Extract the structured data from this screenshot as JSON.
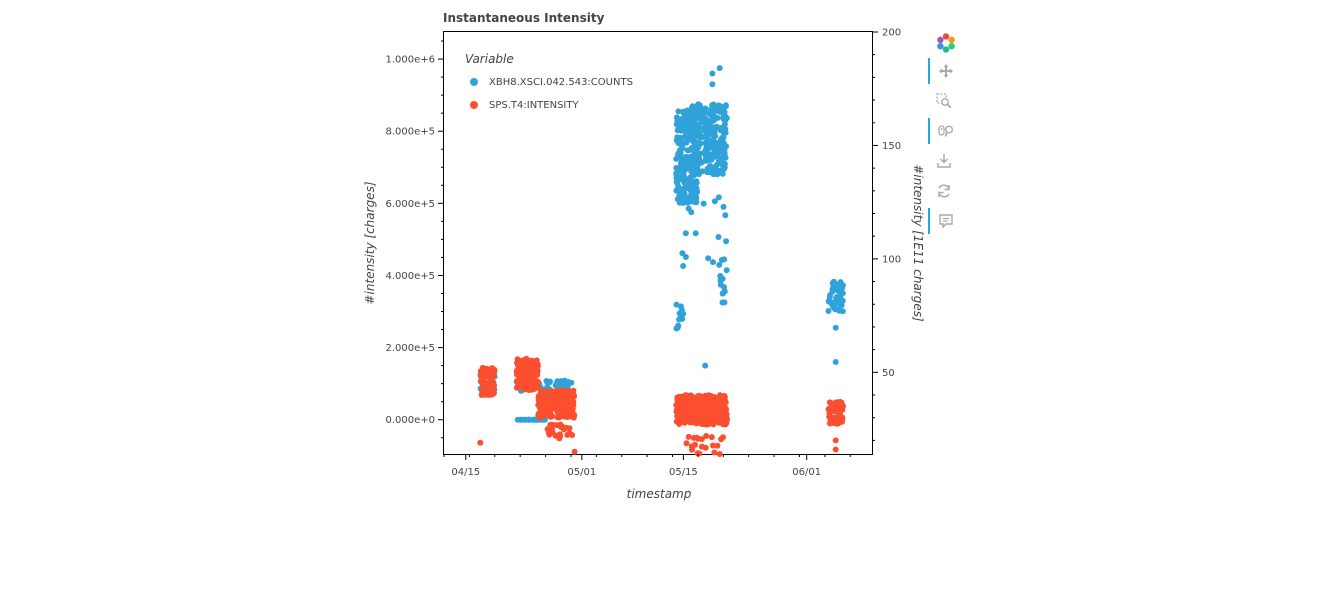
{
  "toolbar": {
    "items": [
      {
        "name": "bokeh-logo-icon",
        "active": false
      },
      {
        "name": "pan-tool-icon",
        "active": true
      },
      {
        "name": "box-zoom-tool-icon",
        "active": false
      },
      {
        "name": "wheel-zoom-tool-icon",
        "active": true
      },
      {
        "name": "save-tool-icon",
        "active": false
      },
      {
        "name": "reset-tool-icon",
        "active": false
      },
      {
        "name": "hover-tool-icon",
        "active": true
      }
    ]
  },
  "chart_data": {
    "type": "scatter",
    "title": "Instantaneous Intensity",
    "xlabel": "timestamp",
    "ylabel": "#intensity [charges]",
    "y2label": "#intensity [1E11 charges]",
    "x_tick_labels": [
      "04/15",
      "05/01",
      "05/15",
      "06/01"
    ],
    "x_ticks": [
      "2021-04-15",
      "2021-05-01",
      "2021-05-15",
      "2021-06-01"
    ],
    "xlim": [
      "2021-04-12",
      "2021-06-10"
    ],
    "ylim": [
      -95000,
      1075000
    ],
    "y_tick_labels": [
      "0.000e+0",
      "2.000e+5",
      "4.000e+5",
      "6.000e+5",
      "8.000e+5",
      "1.000e+6"
    ],
    "y_ticks": [
      0,
      200000,
      400000,
      600000,
      800000,
      1000000
    ],
    "y2lim": [
      14,
      200
    ],
    "y2_tick_labels": [
      "50",
      "100",
      "150",
      "200"
    ],
    "y2_ticks": [
      50,
      100,
      150,
      200
    ],
    "grid": false,
    "legend": {
      "title": "Variable",
      "placement": "top-left"
    },
    "series": [
      {
        "name": "XBH8.XSCI.042.543:COUNTS",
        "color": "#30a2da",
        "axis": "left",
        "clusters": [
          {
            "x0": "2021-04-17",
            "x1": "2021-04-19",
            "y0": 70000,
            "y1": 100000,
            "n": 40
          },
          {
            "x0": "2021-04-17",
            "x1": "2021-04-19",
            "y0": 110000,
            "y1": 130000,
            "n": 15
          },
          {
            "x0": "2021-04-22",
            "x1": "2021-04-24",
            "y0": 80000,
            "y1": 160000,
            "n": 40
          },
          {
            "x0": "2021-04-22",
            "x1": "2021-04-26",
            "y0": 0,
            "y1": 0,
            "n": 20
          },
          {
            "x0": "2021-04-25",
            "x1": "2021-04-30",
            "y0": 80000,
            "y1": 110000,
            "n": 30
          },
          {
            "x0": "2021-05-14",
            "x1": "2021-05-15",
            "y0": 240000,
            "y1": 320000,
            "n": 12
          },
          {
            "x0": "2021-05-14",
            "x1": "2021-05-17",
            "y0": 600000,
            "y1": 860000,
            "n": 220
          },
          {
            "x0": "2021-05-16",
            "x1": "2021-05-21",
            "y0": 680000,
            "y1": 880000,
            "n": 260
          },
          {
            "x0": "2021-05-14",
            "x1": "2021-05-21",
            "y0": 420000,
            "y1": 620000,
            "n": 18
          },
          {
            "x0": "2021-05-20",
            "x1": "2021-05-21",
            "y0": 310000,
            "y1": 450000,
            "n": 14
          },
          {
            "x0": "2021-05-14",
            "x1": "2021-05-21",
            "y0": 0,
            "y1": 20000,
            "n": 30
          },
          {
            "x0": "2021-06-04",
            "x1": "2021-06-06",
            "y0": 300000,
            "y1": 390000,
            "n": 50
          },
          {
            "x0": "2021-06-04",
            "x1": "2021-06-06",
            "y0": 0,
            "y1": 0,
            "n": 4
          }
        ],
        "outliers": [
          {
            "x": "2021-05-20",
            "y": 975000
          },
          {
            "x": "2021-05-19",
            "y": 960000
          },
          {
            "x": "2021-05-19",
            "y": 930000
          },
          {
            "x": "2021-06-05",
            "y": 255000
          },
          {
            "x": "2021-06-05",
            "y": 160000
          },
          {
            "x": "2021-05-18",
            "y": 150000
          }
        ]
      },
      {
        "name": "SPS.T4:INTENSITY",
        "color": "#fc4f30",
        "axis": "right",
        "clusters": [
          {
            "x0": "2021-04-17",
            "x1": "2021-04-19",
            "y0": 40,
            "y1": 52,
            "n": 90
          },
          {
            "x0": "2021-04-22",
            "x1": "2021-04-25",
            "y0": 42,
            "y1": 56,
            "n": 120
          },
          {
            "x0": "2021-04-25",
            "x1": "2021-04-30",
            "y0": 30,
            "y1": 42,
            "n": 220
          },
          {
            "x0": "2021-04-26",
            "x1": "2021-04-30",
            "y0": 20,
            "y1": 27,
            "n": 25
          },
          {
            "x0": "2021-05-14",
            "x1": "2021-05-21",
            "y0": 27,
            "y1": 40,
            "n": 420
          },
          {
            "x0": "2021-05-15",
            "x1": "2021-05-21",
            "y0": 14,
            "y1": 22,
            "n": 20
          },
          {
            "x0": "2021-06-04",
            "x1": "2021-06-06",
            "y0": 27,
            "y1": 37,
            "n": 70
          }
        ],
        "outliers": [
          {
            "x": "2021-04-17",
            "y": 19
          },
          {
            "x": "2021-04-30",
            "y": 15
          },
          {
            "x": "2021-06-05",
            "y": 16
          },
          {
            "x": "2021-06-05",
            "y": 20
          },
          {
            "x": "2021-05-20",
            "y": 14
          }
        ]
      }
    ]
  }
}
